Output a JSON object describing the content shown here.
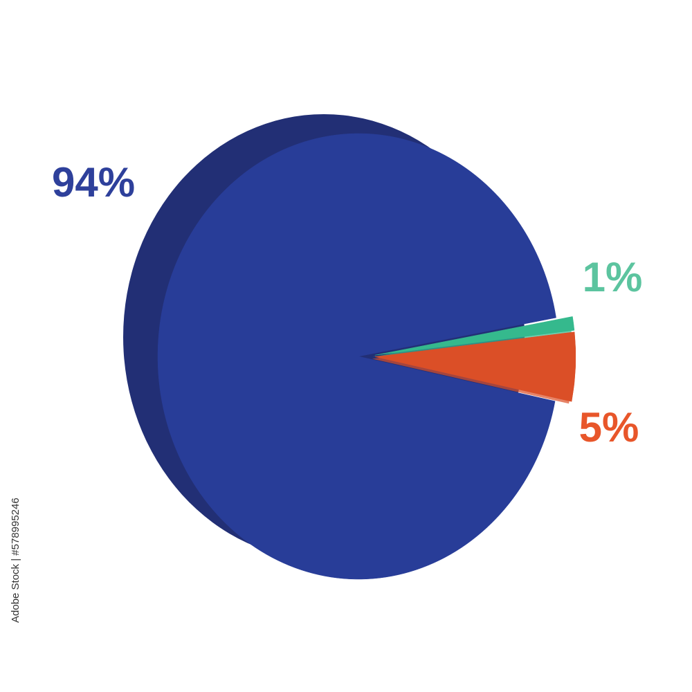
{
  "chart_data": {
    "type": "pie",
    "values": [
      1,
      5,
      94
    ],
    "value_labels": [
      "1%",
      "5%",
      "94%"
    ],
    "colors": [
      "#35b98d",
      "#db4f27",
      "#283d98"
    ],
    "label_colors": [
      "#5cc49f",
      "#e8562a",
      "#2e409b"
    ]
  },
  "watermark": "Adobe Stock | #578995246"
}
